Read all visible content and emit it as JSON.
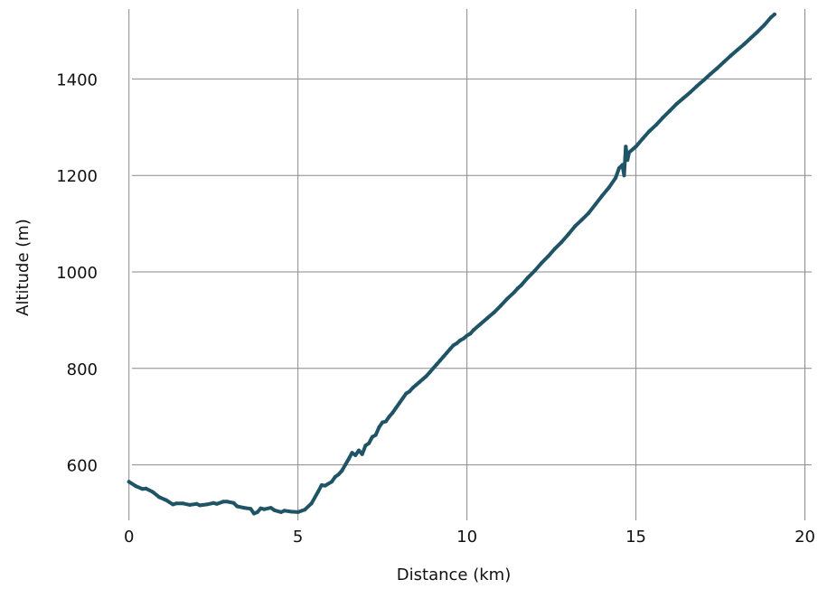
{
  "chart_data": {
    "type": "line",
    "title": "",
    "xlabel": "Distance (km)",
    "ylabel": "Altitude (m)",
    "xlim": [
      -0.5,
      20.2
    ],
    "ylim": [
      485,
      1545
    ],
    "x_ticks": [
      0,
      5,
      10,
      15,
      20
    ],
    "y_ticks": [
      600,
      800,
      1000,
      1200,
      1400
    ],
    "grid": true,
    "series": [
      {
        "color": "#1f5466",
        "x": [
          0,
          0.2,
          0.4,
          0.5,
          0.7,
          0.9,
          1.1,
          1.3,
          1.4,
          1.6,
          1.8,
          2.0,
          2.1,
          2.3,
          2.5,
          2.6,
          2.8,
          2.9,
          3.1,
          3.2,
          3.4,
          3.6,
          3.7,
          3.8,
          3.9,
          4.0,
          4.2,
          4.3,
          4.5,
          4.6,
          4.8,
          5.0,
          5.2,
          5.4,
          5.6,
          5.7,
          5.8,
          6.0,
          6.1,
          6.2,
          6.3,
          6.4,
          6.5,
          6.6,
          6.7,
          6.8,
          6.9,
          7.0,
          7.1,
          7.2,
          7.3,
          7.4,
          7.5,
          7.6,
          7.7,
          7.8,
          7.9,
          8.0,
          8.1,
          8.2,
          8.3,
          8.4,
          8.5,
          8.6,
          8.7,
          8.8,
          8.9,
          9.0,
          9.1,
          9.2,
          9.3,
          9.4,
          9.5,
          9.6,
          9.7,
          9.8,
          9.9,
          10.0,
          10.1,
          10.2,
          10.4,
          10.6,
          10.8,
          11.0,
          11.2,
          11.4,
          11.5,
          11.6,
          11.8,
          12.0,
          12.2,
          12.4,
          12.6,
          12.8,
          13.0,
          13.2,
          13.4,
          13.6,
          13.8,
          14.0,
          14.2,
          14.4,
          14.5,
          14.6,
          14.65,
          14.7,
          14.75,
          14.8,
          15.0,
          15.2,
          15.4,
          15.6,
          15.8,
          16.0,
          16.2,
          16.4,
          16.6,
          16.8,
          17.0,
          17.2,
          17.4,
          17.6,
          17.8,
          18.0,
          18.2,
          18.4,
          18.6,
          18.8,
          19.0,
          19.1
        ],
        "y": [
          565,
          556,
          550,
          551,
          544,
          533,
          527,
          518,
          520,
          520,
          517,
          519,
          516,
          518,
          521,
          519,
          524,
          524,
          521,
          514,
          511,
          509,
          499,
          502,
          510,
          508,
          511,
          506,
          502,
          505,
          503,
          502,
          507,
          520,
          545,
          558,
          557,
          565,
          575,
          580,
          588,
          600,
          612,
          625,
          620,
          630,
          622,
          640,
          645,
          658,
          662,
          678,
          688,
          690,
          700,
          708,
          718,
          728,
          738,
          748,
          752,
          760,
          766,
          772,
          778,
          784,
          792,
          800,
          808,
          816,
          824,
          832,
          840,
          848,
          852,
          858,
          862,
          868,
          872,
          880,
          892,
          904,
          916,
          930,
          945,
          958,
          966,
          972,
          988,
          1002,
          1018,
          1032,
          1048,
          1062,
          1078,
          1095,
          1108,
          1122,
          1140,
          1158,
          1175,
          1195,
          1215,
          1222,
          1200,
          1260,
          1232,
          1248,
          1260,
          1276,
          1292,
          1305,
          1320,
          1334,
          1348,
          1360,
          1372,
          1385,
          1397,
          1410,
          1422,
          1435,
          1448,
          1460,
          1472,
          1485,
          1498,
          1512,
          1528,
          1534
        ]
      }
    ]
  }
}
